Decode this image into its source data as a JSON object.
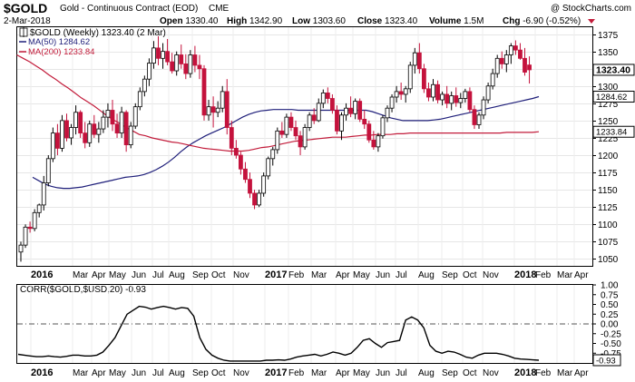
{
  "header": {
    "symbol": "$GOLD",
    "description": "Gold - Continuous Contract (EOD)",
    "exchange": "CME",
    "watermark": "@ StockCharts.com",
    "date": "2-Mar-2018",
    "stats": [
      {
        "label": "Open",
        "value": "1330.40"
      },
      {
        "label": "High",
        "value": "1342.90"
      },
      {
        "label": "Low",
        "value": "1303.60"
      },
      {
        "label": "Close",
        "value": "1323.40"
      },
      {
        "label": "Volume",
        "value": "1.5M"
      },
      {
        "label": "Chg",
        "value": "-6.90 (-0.52%)"
      }
    ]
  },
  "chart_data": [
    {
      "type": "candlestick",
      "title": "$GOLD (Weekly) 1323.40 (2 Mar)",
      "ylim": [
        1040,
        1385
      ],
      "y_ticks": [
        1050,
        1075,
        1100,
        1125,
        1150,
        1175,
        1200,
        1225,
        1250,
        1275,
        1300,
        1325,
        1350,
        1375
      ],
      "x_labels": [
        "2016",
        "Mar",
        "Apr",
        "May",
        "Jun",
        "Jul",
        "Aug",
        "Sep",
        "Oct",
        "Nov",
        "2017",
        "Feb",
        "Mar",
        "Apr",
        "May",
        "Jun",
        "Jul",
        "Aug",
        "Sep",
        "Oct",
        "Nov",
        "2018",
        "Feb",
        "Mar",
        "Apr"
      ],
      "legend": [
        {
          "name": "MA(50) 1284.62",
          "color": "#1f1f7a"
        },
        {
          "name": "MA(200) 1233.84",
          "color": "#c21b3a"
        }
      ],
      "value_tags": [
        {
          "value": 1323.4,
          "text": "1323.40",
          "style": "bold"
        },
        {
          "value": 1284.62,
          "text": "1284.62",
          "style": "normal"
        },
        {
          "value": 1233.84,
          "text": "1233.84",
          "style": "normal"
        }
      ],
      "ohlc": [
        [
          1060,
          1075,
          1046,
          1070
        ],
        [
          1070,
          1100,
          1066,
          1096
        ],
        [
          1096,
          1104,
          1088,
          1094
        ],
        [
          1094,
          1122,
          1090,
          1117
        ],
        [
          1117,
          1130,
          1110,
          1128
        ],
        [
          1128,
          1170,
          1120,
          1160
        ],
        [
          1160,
          1200,
          1155,
          1195
        ],
        [
          1195,
          1240,
          1190,
          1232
        ],
        [
          1232,
          1245,
          1200,
          1210
        ],
        [
          1210,
          1258,
          1205,
          1250
        ],
        [
          1250,
          1260,
          1220,
          1225
        ],
        [
          1225,
          1245,
          1215,
          1240
        ],
        [
          1240,
          1272,
          1230,
          1262
        ],
        [
          1262,
          1265,
          1225,
          1232
        ],
        [
          1232,
          1248,
          1210,
          1218
        ],
        [
          1218,
          1250,
          1212,
          1245
        ],
        [
          1245,
          1258,
          1225,
          1230
        ],
        [
          1230,
          1248,
          1218,
          1238
        ],
        [
          1238,
          1265,
          1232,
          1255
        ],
        [
          1255,
          1275,
          1240,
          1265
        ],
        [
          1265,
          1280,
          1235,
          1245
        ],
        [
          1245,
          1260,
          1225,
          1232
        ],
        [
          1232,
          1270,
          1225,
          1262
        ],
        [
          1262,
          1265,
          1205,
          1215
        ],
        [
          1215,
          1248,
          1210,
          1242
        ],
        [
          1242,
          1275,
          1238,
          1270
        ],
        [
          1270,
          1298,
          1265,
          1292
        ],
        [
          1292,
          1315,
          1285,
          1310
        ],
        [
          1310,
          1340,
          1300,
          1333
        ],
        [
          1333,
          1365,
          1325,
          1355
        ],
        [
          1355,
          1372,
          1330,
          1340
        ],
        [
          1340,
          1362,
          1325,
          1350
        ],
        [
          1350,
          1368,
          1330,
          1335
        ],
        [
          1335,
          1348,
          1318,
          1322
        ],
        [
          1322,
          1350,
          1315,
          1345
        ],
        [
          1345,
          1360,
          1325,
          1332
        ],
        [
          1332,
          1346,
          1310,
          1318
        ],
        [
          1318,
          1352,
          1312,
          1345
        ],
        [
          1345,
          1358,
          1320,
          1330
        ],
        [
          1330,
          1345,
          1310,
          1325
        ],
        [
          1325,
          1330,
          1250,
          1258
        ],
        [
          1258,
          1280,
          1250,
          1270
        ],
        [
          1270,
          1285,
          1240,
          1262
        ],
        [
          1262,
          1278,
          1255,
          1268
        ],
        [
          1268,
          1300,
          1262,
          1292
        ],
        [
          1292,
          1310,
          1230,
          1240
        ],
        [
          1240,
          1250,
          1200,
          1210
        ],
        [
          1210,
          1222,
          1195,
          1200
        ],
        [
          1200,
          1205,
          1172,
          1180
        ],
        [
          1180,
          1190,
          1160,
          1165
        ],
        [
          1165,
          1175,
          1138,
          1145
        ],
        [
          1145,
          1150,
          1122,
          1128
        ],
        [
          1128,
          1150,
          1125,
          1145
        ],
        [
          1145,
          1175,
          1140,
          1170
        ],
        [
          1170,
          1198,
          1165,
          1195
        ],
        [
          1195,
          1212,
          1185,
          1208
        ],
        [
          1208,
          1240,
          1202,
          1235
        ],
        [
          1235,
          1248,
          1225,
          1230
        ],
        [
          1230,
          1260,
          1225,
          1255
        ],
        [
          1255,
          1262,
          1235,
          1240
        ],
        [
          1240,
          1250,
          1222,
          1228
        ],
        [
          1228,
          1235,
          1200,
          1212
        ],
        [
          1212,
          1245,
          1208,
          1240
        ],
        [
          1240,
          1262,
          1235,
          1258
        ],
        [
          1258,
          1268,
          1245,
          1250
        ],
        [
          1250,
          1282,
          1248,
          1275
        ],
        [
          1275,
          1295,
          1268,
          1290
        ],
        [
          1290,
          1298,
          1275,
          1282
        ],
        [
          1282,
          1288,
          1260,
          1265
        ],
        [
          1265,
          1272,
          1230,
          1235
        ],
        [
          1235,
          1262,
          1222,
          1258
        ],
        [
          1258,
          1275,
          1250,
          1268
        ],
        [
          1268,
          1285,
          1255,
          1260
        ],
        [
          1260,
          1282,
          1252,
          1278
        ],
        [
          1278,
          1282,
          1248,
          1252
        ],
        [
          1252,
          1265,
          1238,
          1245
        ],
        [
          1245,
          1250,
          1218,
          1222
        ],
        [
          1222,
          1235,
          1208,
          1212
        ],
        [
          1212,
          1232,
          1205,
          1228
        ],
        [
          1228,
          1258,
          1224,
          1254
        ],
        [
          1254,
          1272,
          1248,
          1268
        ],
        [
          1268,
          1288,
          1262,
          1284
        ],
        [
          1284,
          1300,
          1276,
          1292
        ],
        [
          1292,
          1305,
          1280,
          1288
        ],
        [
          1288,
          1300,
          1276,
          1296
        ],
        [
          1296,
          1335,
          1290,
          1330
        ],
        [
          1330,
          1355,
          1318,
          1348
        ],
        [
          1348,
          1362,
          1318,
          1325
        ],
        [
          1325,
          1332,
          1290,
          1296
        ],
        [
          1296,
          1305,
          1278,
          1284
        ],
        [
          1284,
          1310,
          1278,
          1302
        ],
        [
          1302,
          1308,
          1275,
          1280
        ],
        [
          1280,
          1292,
          1272,
          1288
        ],
        [
          1288,
          1300,
          1268,
          1275
        ],
        [
          1275,
          1292,
          1265,
          1286
        ],
        [
          1286,
          1298,
          1270,
          1276
        ],
        [
          1276,
          1290,
          1268,
          1282
        ],
        [
          1282,
          1296,
          1276,
          1292
        ],
        [
          1292,
          1298,
          1262,
          1266
        ],
        [
          1266,
          1272,
          1238,
          1244
        ],
        [
          1244,
          1262,
          1238,
          1258
        ],
        [
          1258,
          1285,
          1252,
          1280
        ],
        [
          1280,
          1305,
          1275,
          1300
        ],
        [
          1300,
          1325,
          1295,
          1318
        ],
        [
          1318,
          1345,
          1312,
          1340
        ],
        [
          1340,
          1350,
          1325,
          1332
        ],
        [
          1332,
          1352,
          1320,
          1345
        ],
        [
          1345,
          1362,
          1332,
          1358
        ],
        [
          1358,
          1366,
          1345,
          1352
        ],
        [
          1352,
          1362,
          1338,
          1340
        ],
        [
          1340,
          1355,
          1315,
          1320
        ],
        [
          1330.4,
          1342.9,
          1303.6,
          1323.4
        ]
      ],
      "series": [
        {
          "name": "MA(50)",
          "color": "#1f1f7a",
          "values": [
            1168,
            1163,
            1158,
            1155,
            1153,
            1152,
            1152,
            1153,
            1154,
            1156,
            1158,
            1160,
            1162,
            1164,
            1166,
            1168,
            1169,
            1170,
            1172,
            1175,
            1179,
            1184,
            1190,
            1197,
            1205,
            1212,
            1218,
            1223,
            1228,
            1232,
            1236,
            1240,
            1245,
            1250,
            1255,
            1259,
            1262,
            1264,
            1265,
            1266,
            1266,
            1266,
            1266,
            1265,
            1265,
            1265,
            1265,
            1265,
            1265,
            1265,
            1265,
            1265,
            1265,
            1265,
            1265,
            1263,
            1260,
            1257,
            1254,
            1252,
            1250,
            1250,
            1250,
            1250,
            1250,
            1251,
            1252,
            1254,
            1256,
            1258,
            1260,
            1262,
            1264,
            1266,
            1268,
            1270,
            1272,
            1274,
            1276,
            1278,
            1280,
            1282,
            1284.62
          ]
        },
        {
          "name": "MA(200)",
          "color": "#c21b3a",
          "values": [
            1345,
            1340,
            1335,
            1329,
            1323,
            1316,
            1310,
            1303,
            1297,
            1290,
            1283,
            1277,
            1271,
            1264,
            1257,
            1251,
            1246,
            1240,
            1235,
            1230,
            1228,
            1225,
            1223,
            1221,
            1219,
            1218,
            1216,
            1214,
            1212,
            1210,
            1209,
            1208,
            1207,
            1206,
            1206,
            1206,
            1207,
            1209,
            1211,
            1212,
            1214,
            1216,
            1218,
            1220,
            1221,
            1222,
            1223,
            1224,
            1225,
            1226,
            1226,
            1226,
            1227,
            1228,
            1229,
            1229,
            1230,
            1230,
            1230,
            1231,
            1231,
            1232,
            1232,
            1232,
            1232,
            1232,
            1232,
            1232,
            1232,
            1232,
            1232,
            1232,
            1232,
            1232,
            1232,
            1232,
            1233,
            1233,
            1233,
            1233,
            1233,
            1233.84
          ]
        }
      ]
    },
    {
      "type": "line",
      "title": "CORR($GOLD,$USD,20) -0.93",
      "ylim": [
        -1.0,
        1.0
      ],
      "y_ticks": [
        1.0,
        0.75,
        0.5,
        0.25,
        0.0,
        -0.25,
        -0.5,
        -0.75,
        -1.0
      ],
      "y_tick_labels": [
        "1.00",
        "0.75",
        "0.50",
        "0.25",
        "0.00",
        "-0.25",
        "-0.50",
        "-0.75",
        "-1.00"
      ],
      "reference_line": 0.0,
      "value_tag": {
        "value": -0.93,
        "text": "-0.93"
      },
      "x_labels": [
        "2016",
        "Mar",
        "Apr",
        "May",
        "Jun",
        "Jul",
        "Aug",
        "Sep",
        "Oct",
        "Nov",
        "2017",
        "Feb",
        "Mar",
        "Apr",
        "May",
        "Jun",
        "Jul",
        "Aug",
        "Sep",
        "Oct",
        "Nov",
        "2018",
        "Feb",
        "Mar",
        "Apr"
      ],
      "series": [
        {
          "name": "CORR",
          "color": "#000000",
          "values": [
            -0.78,
            -0.8,
            -0.82,
            -0.84,
            -0.84,
            -0.82,
            -0.84,
            -0.85,
            -0.83,
            -0.8,
            -0.8,
            -0.82,
            -0.82,
            -0.8,
            -0.72,
            -0.55,
            -0.35,
            -0.05,
            0.25,
            0.35,
            0.45,
            0.43,
            0.38,
            0.42,
            0.45,
            0.42,
            0.38,
            0.42,
            0.4,
            0.2,
            -0.35,
            -0.65,
            -0.8,
            -0.88,
            -0.93,
            -0.95,
            -0.95,
            -0.95,
            -0.95,
            -0.95,
            -0.95,
            -0.93,
            -0.93,
            -0.92,
            -0.93,
            -0.9,
            -0.85,
            -0.82,
            -0.8,
            -0.78,
            -0.82,
            -0.78,
            -0.72,
            -0.75,
            -0.8,
            -0.75,
            -0.6,
            -0.42,
            -0.38,
            -0.5,
            -0.6,
            -0.48,
            -0.45,
            -0.42,
            0.1,
            0.18,
            0.1,
            -0.1,
            -0.55,
            -0.7,
            -0.75,
            -0.7,
            -0.72,
            -0.78,
            -0.85,
            -0.88,
            -0.8,
            -0.75,
            -0.75,
            -0.75,
            -0.78,
            -0.82,
            -0.88,
            -0.9,
            -0.91,
            -0.92,
            -0.93
          ]
        }
      ]
    }
  ]
}
